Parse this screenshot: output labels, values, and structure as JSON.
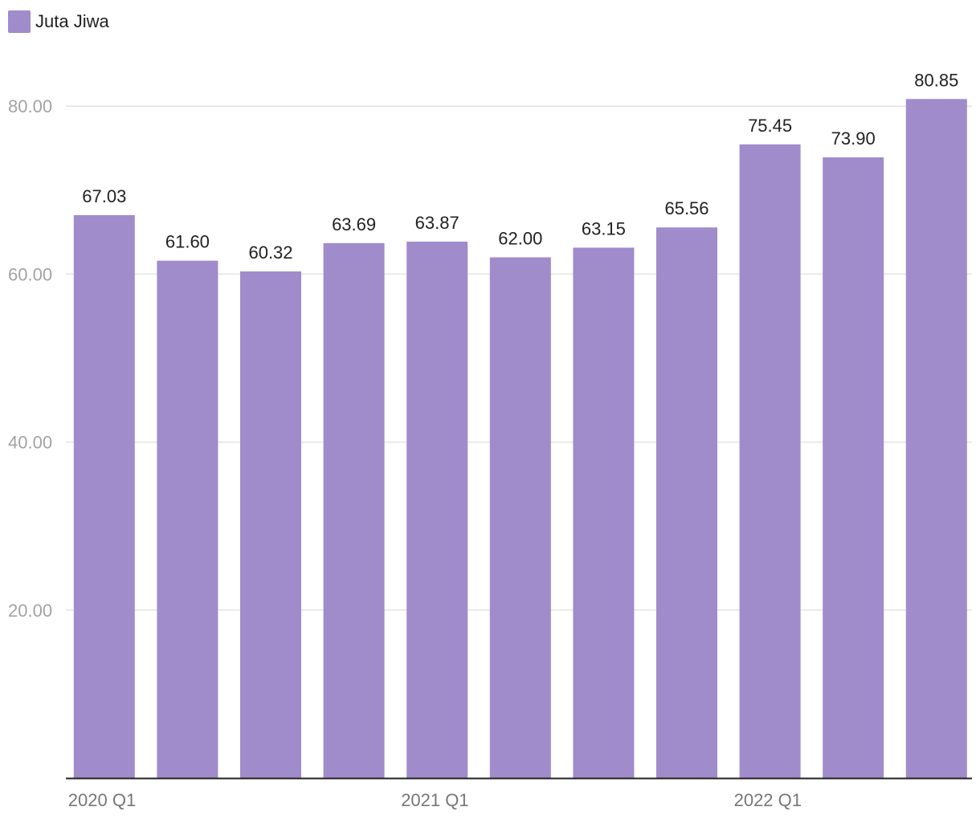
{
  "chart_data": {
    "type": "bar",
    "categories": [
      "2020 Q1",
      "",
      "",
      "",
      "2021 Q1",
      "",
      "",
      "",
      "2022 Q1",
      "",
      ""
    ],
    "series": [
      {
        "name": "Juta Jiwa",
        "color": "#a08bcb",
        "values": [
          67.03,
          61.6,
          60.32,
          63.69,
          63.87,
          62.0,
          63.15,
          65.56,
          75.45,
          73.9,
          80.85
        ],
        "value_labels": [
          "67.03",
          "61.60",
          "60.32",
          "63.69",
          "63.87",
          "62.00",
          "63.15",
          "65.56",
          "75.45",
          "73.90",
          "80.85"
        ]
      }
    ],
    "y_ticks": [
      20,
      40,
      60,
      80
    ],
    "y_tick_labels": [
      "20.00",
      "40.00",
      "60.00",
      "80.00"
    ],
    "ylim": [
      0,
      80
    ],
    "grid": true,
    "legend_position": "top-left",
    "title": "",
    "xlabel": "",
    "ylabel": ""
  },
  "legend": {
    "label": "Juta Jiwa",
    "color": "#a08bcb"
  }
}
